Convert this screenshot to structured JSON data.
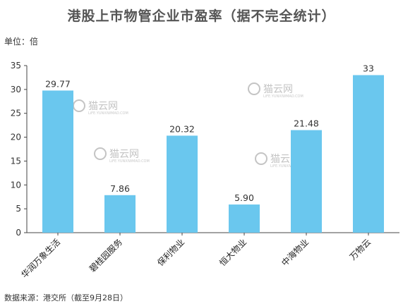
{
  "chart_data": {
    "type": "bar",
    "title": "港股上市物管企业市盈率（据不完全统计）",
    "unit_label": "单位：倍",
    "categories": [
      "华润万象生活",
      "碧桂园服务",
      "保利物业",
      "恒大物业",
      "中海物业",
      "万物云"
    ],
    "values": [
      29.77,
      7.86,
      20.32,
      5.9,
      21.48,
      33
    ],
    "value_labels": [
      "29.77",
      "7.86",
      "20.32",
      "5.90",
      "21.48",
      "33"
    ],
    "ylim": [
      0,
      35
    ],
    "yticks": [
      0,
      5,
      10,
      15,
      20,
      25,
      30,
      35
    ],
    "ytick_labels": [
      "0",
      "5",
      "10",
      "15",
      "20",
      "25",
      "30",
      "35"
    ],
    "grid": false,
    "bar_color": "#6ac7ee",
    "source": "数据来源：港交所（截至9月28日）"
  },
  "watermark": {
    "text": "猫云网",
    "subtext": "LiFE.YUNXIWMAO.COM",
    "color": "#c4c4c4"
  }
}
